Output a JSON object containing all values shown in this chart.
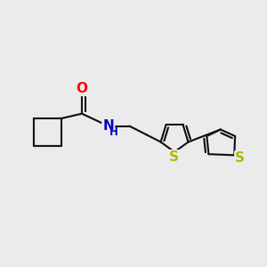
{
  "bg_color": "#ebebeb",
  "line_color": "#1a1a1a",
  "line_width": 1.6,
  "O_color": "#ff0000",
  "N_color": "#0000cc",
  "S_color": "#b8b800",
  "font_size_atoms": 10.5,
  "fig_width": 3.0,
  "fig_height": 3.0,
  "dpi": 100,
  "xlim": [
    0,
    10
  ],
  "ylim": [
    0,
    10
  ]
}
